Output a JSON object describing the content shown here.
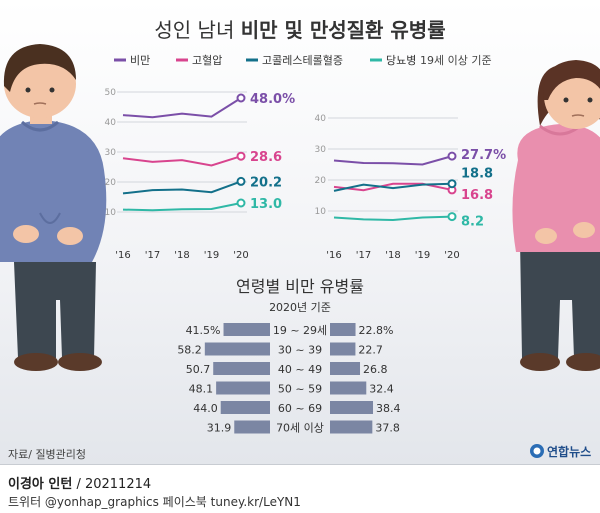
{
  "title": {
    "light": "성인 남녀",
    "bold": "비만 및 만성질환 유병률"
  },
  "legend": [
    {
      "name": "비만",
      "color": "#7b4fa8"
    },
    {
      "name": "고혈압",
      "color": "#d8448e"
    },
    {
      "name": "고콜레스테롤혈증",
      "color": "#13708a"
    },
    {
      "name": "당뇨병",
      "color": "#2fb8a6"
    }
  ],
  "age_note": "19세 이상 기준",
  "source": "자료/ 질병관리청",
  "logo": "연합뉴스",
  "footer": {
    "credit_bold": "이경아 인턴",
    "credit_rest": " / 20211214",
    "social": "트위터 @yonhap_graphics  페이스북 tuney.kr/LeYN1"
  },
  "chart_data": [
    {
      "type": "line",
      "gender": "male",
      "x": [
        "'16",
        "'17",
        "'18",
        "'19",
        "'20"
      ],
      "ylim": [
        0,
        50
      ],
      "yticks": [
        10,
        20,
        30,
        40,
        50
      ],
      "series": [
        {
          "name": "비만",
          "color": "#7b4fa8",
          "values": [
            42.3,
            41.6,
            42.8,
            41.8,
            48.0
          ],
          "end_label": "48.0%"
        },
        {
          "name": "고혈압",
          "color": "#d8448e",
          "values": [
            27.9,
            26.7,
            27.3,
            25.5,
            28.6
          ],
          "end_label": "28.6"
        },
        {
          "name": "고콜레스테롤혈증",
          "color": "#13708a",
          "values": [
            16.2,
            17.3,
            17.5,
            16.6,
            20.2
          ],
          "end_label": "20.2"
        },
        {
          "name": "당뇨병",
          "color": "#2fb8a6",
          "values": [
            10.8,
            10.6,
            10.9,
            11.0,
            13.0
          ],
          "end_label": "13.0"
        }
      ]
    },
    {
      "type": "line",
      "gender": "female",
      "x": [
        "'16",
        "'17",
        "'18",
        "'19",
        "'20"
      ],
      "ylim": [
        0,
        40
      ],
      "yticks": [
        10,
        20,
        30,
        40
      ],
      "series": [
        {
          "name": "비만",
          "color": "#7b4fa8",
          "values": [
            26.3,
            25.5,
            25.4,
            25.0,
            27.7
          ],
          "end_label": "27.7%"
        },
        {
          "name": "고혈압",
          "color": "#d8448e",
          "values": [
            17.8,
            16.7,
            18.8,
            18.8,
            16.8
          ],
          "end_label": "16.8"
        },
        {
          "name": "고콜레스테롤혈증",
          "color": "#13708a",
          "values": [
            16.5,
            18.5,
            17.4,
            18.5,
            18.8
          ],
          "end_label": "18.8"
        },
        {
          "name": "당뇨병",
          "color": "#2fb8a6",
          "values": [
            7.9,
            7.3,
            7.1,
            7.9,
            8.2
          ],
          "end_label": "8.2"
        }
      ]
    },
    {
      "type": "bar",
      "title": "연령별 비만 유병률",
      "subtitle": "2020년 기준",
      "categories": [
        "19 ~ 29세",
        "30 ~ 39",
        "40 ~ 49",
        "50 ~ 59",
        "60 ~ 69",
        "70세 이상"
      ],
      "male": {
        "values": [
          41.5,
          58.2,
          50.7,
          48.1,
          44.0,
          31.9
        ],
        "labels": [
          "41.5%",
          "58.2",
          "50.7",
          "48.1",
          "44.0",
          "31.9"
        ]
      },
      "female": {
        "values": [
          22.8,
          22.7,
          26.8,
          32.4,
          38.4,
          37.8
        ],
        "labels": [
          "22.8%",
          "22.7",
          "26.8",
          "32.4",
          "38.4",
          "37.8"
        ]
      }
    }
  ]
}
